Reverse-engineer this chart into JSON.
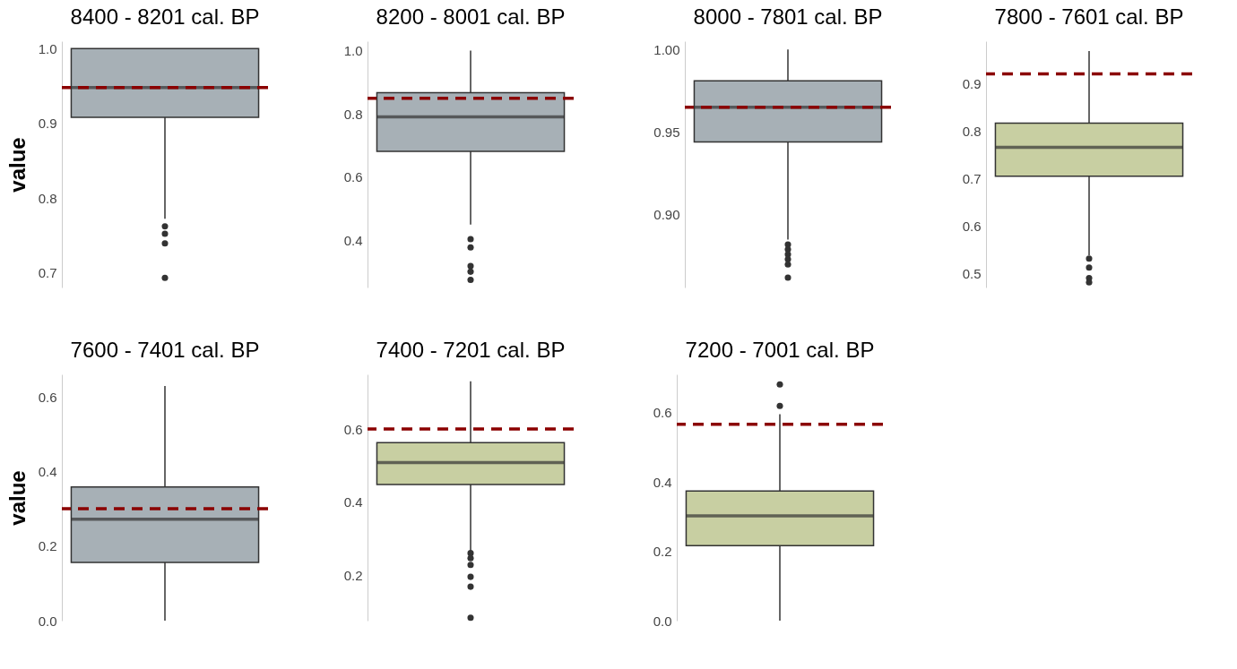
{
  "chart_data": [
    {
      "type": "box",
      "title": "8400 - 8201 cal. BP",
      "ylabel": "value",
      "categories": [
        null
      ],
      "series": [
        {
          "color": "#a7b0b6",
          "boxes": [
            {
              "low": 0.772,
              "q1": 0.908,
              "median": 0.948,
              "q3": 1.0,
              "high": 1.0,
              "outliers": [
                0.762,
                0.752,
                0.739,
                0.693
              ]
            }
          ]
        }
      ],
      "ylim": [
        0.68,
        1.01
      ],
      "yticks": [
        0.7,
        0.8,
        0.9,
        {
          "value": 1,
          "label": "1.0"
        }
      ],
      "ref_lines": [
        {
          "axis": "y",
          "value": 0.948,
          "color": "#8b0000",
          "line_style": "dashed"
        }
      ]
    },
    {
      "type": "box",
      "title": "8200 - 8001 cal. BP",
      "categories": [
        null
      ],
      "series": [
        {
          "color": "#a7b0b6",
          "boxes": [
            {
              "low": 0.449,
              "q1": 0.681,
              "median": 0.79,
              "q3": 0.867,
              "high": 1.0,
              "outliers": [
                0.403,
                0.377,
                0.318,
                0.3,
                0.274
              ]
            }
          ]
        }
      ],
      "ylim": [
        0.25,
        1.03
      ],
      "yticks": [
        0.4,
        0.6,
        0.8,
        {
          "value": 1,
          "label": "1.0"
        }
      ],
      "ref_lines": [
        {
          "axis": "y",
          "value": 0.849,
          "color": "#8b0000",
          "line_style": "dashed"
        }
      ]
    },
    {
      "type": "box",
      "title": "8000 - 7801 cal. BP",
      "categories": [
        null
      ],
      "series": [
        {
          "color": "#a7b0b6",
          "boxes": [
            {
              "low": 0.885,
              "q1": 0.944,
              "median": 0.965,
              "q3": 0.981,
              "high": 1.0,
              "outliers": [
                0.882,
                0.879,
                0.876,
                0.873,
                0.87,
                0.862
              ]
            }
          ]
        }
      ],
      "ylim": [
        0.856,
        1.005
      ],
      "yticks": [
        {
          "value": 0.9,
          "label": "0.90"
        },
        0.95,
        {
          "value": 1,
          "label": "1.00"
        }
      ],
      "ref_lines": [
        {
          "axis": "y",
          "value": 0.965,
          "color": "#8b0000",
          "line_style": "dashed"
        }
      ]
    },
    {
      "type": "box",
      "title": "7800 - 7601 cal. BP",
      "categories": [
        null
      ],
      "series": [
        {
          "color": "#c8cfa2",
          "boxes": [
            {
              "low": 0.538,
              "q1": 0.705,
              "median": 0.766,
              "q3": 0.817,
              "high": 0.969,
              "outliers": [
                0.531,
                0.512,
                0.49,
                0.481
              ]
            }
          ]
        }
      ],
      "ylim": [
        0.47,
        0.99
      ],
      "yticks": [
        0.5,
        0.6,
        0.7,
        0.8,
        0.9
      ],
      "ref_lines": [
        {
          "axis": "y",
          "value": 0.921,
          "color": "#8b0000",
          "line_style": "dashed"
        }
      ]
    },
    {
      "type": "box",
      "title": "7600 - 7401 cal. BP",
      "ylabel": "value",
      "categories": [
        null
      ],
      "series": [
        {
          "color": "#a7b0b6",
          "boxes": [
            {
              "low": 0.0,
              "q1": 0.156,
              "median": 0.272,
              "q3": 0.358,
              "high": 0.629
            }
          ]
        }
      ],
      "ylim": [
        0,
        0.66
      ],
      "yticks": [
        {
          "value": 0,
          "label": "0.0"
        },
        0.2,
        0.4,
        0.6
      ],
      "ref_lines": [
        {
          "axis": "y",
          "value": 0.3,
          "color": "#8b0000",
          "line_style": "dashed"
        }
      ]
    },
    {
      "type": "box",
      "title": "7400 - 7201 cal. BP",
      "categories": [
        null
      ],
      "series": [
        {
          "color": "#c8cfa2",
          "boxes": [
            {
              "low": 0.264,
              "q1": 0.448,
              "median": 0.508,
              "q3": 0.563,
              "high": 0.731,
              "outliers": [
                0.26,
                0.246,
                0.228,
                0.195,
                0.168,
                0.083
              ]
            }
          ]
        }
      ],
      "ylim": [
        0.075,
        0.75
      ],
      "yticks": [
        0.2,
        0.4,
        0.6
      ],
      "ref_lines": [
        {
          "axis": "y",
          "value": 0.6,
          "color": "#8b0000",
          "line_style": "dashed"
        }
      ]
    },
    {
      "type": "box",
      "title": "7200 - 7001 cal. BP",
      "categories": [
        null
      ],
      "series": [
        {
          "color": "#c8cfa2",
          "boxes": [
            {
              "low": 0.0,
              "q1": 0.216,
              "median": 0.302,
              "q3": 0.374,
              "high": 0.595,
              "outliers": [
                0.619,
                0.681
              ]
            }
          ]
        }
      ],
      "ylim": [
        0,
        0.71
      ],
      "yticks": [
        {
          "value": 0,
          "label": "0.0"
        },
        0.2,
        0.4,
        0.6
      ],
      "ref_lines": [
        {
          "axis": "y",
          "value": 0.566,
          "color": "#8b0000",
          "line_style": "dashed"
        }
      ]
    }
  ]
}
